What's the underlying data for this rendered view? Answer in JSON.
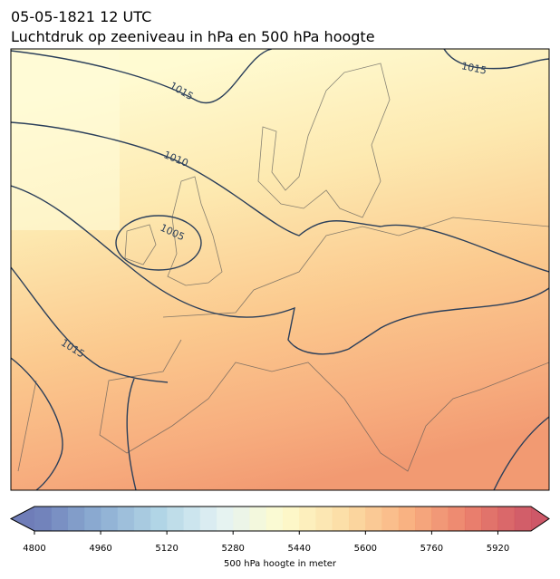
{
  "header": {
    "title": "05-05-1821 12 UTC",
    "subtitle": "Luchtdruk op zeeniveau in hPa en 500 hPa hoogte"
  },
  "map": {
    "contour_labels": [
      "1015",
      "1010",
      "1005",
      "1015",
      "1015"
    ]
  },
  "colorbar": {
    "range": [
      4800,
      6000
    ],
    "ticks": [
      4800,
      4960,
      5120,
      5280,
      5440,
      5600,
      5760,
      5920
    ],
    "label": "500 hPa hoogte in meter"
  }
}
